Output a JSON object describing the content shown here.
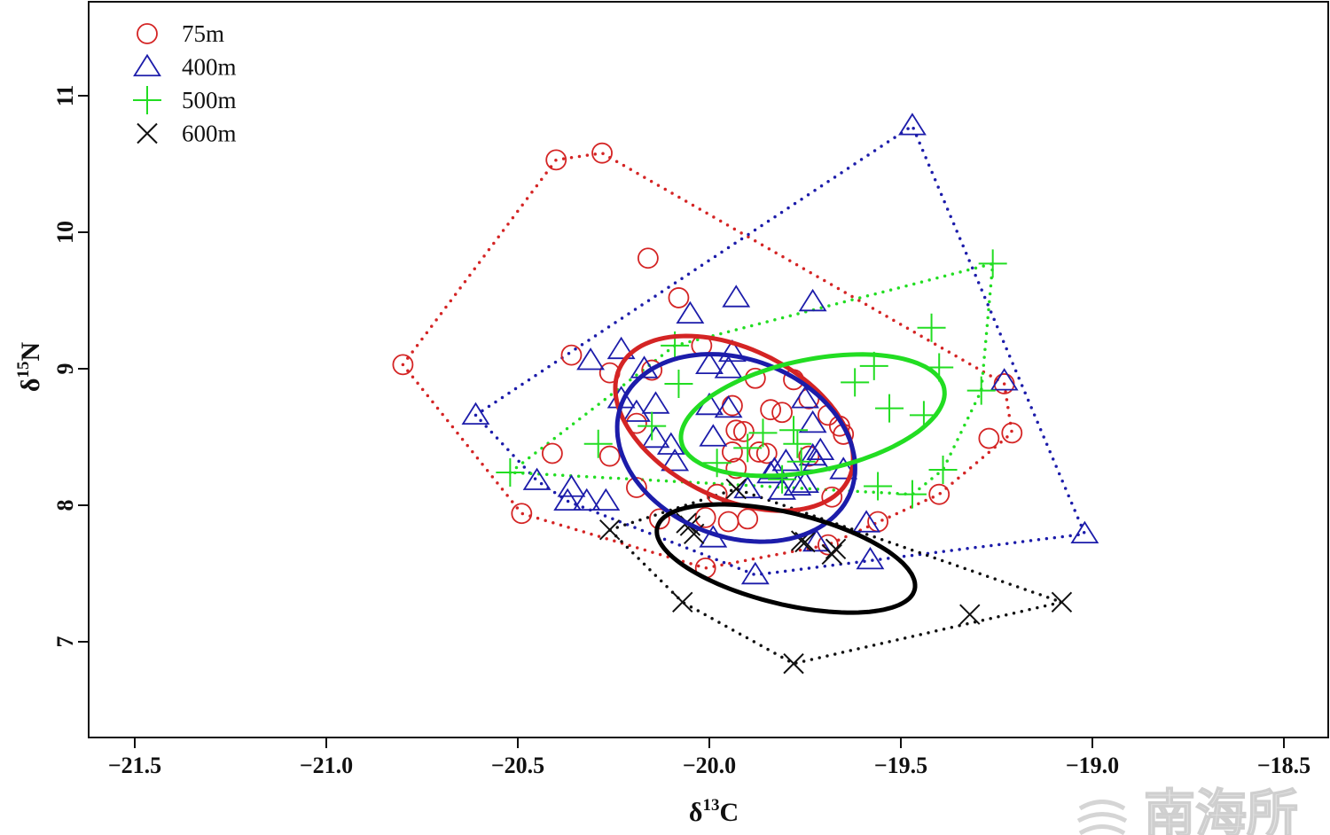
{
  "chart_data": {
    "type": "scatter",
    "title": "",
    "xlabel": {
      "base": "δ",
      "sup": "13",
      "tail": "C"
    },
    "ylabel": {
      "base": "δ",
      "sup": "15",
      "tail": "N"
    },
    "xlim": [
      -21.62,
      -18.38
    ],
    "ylim": [
      6.3,
      11.69
    ],
    "xticks": [
      -21.5,
      -21.0,
      -20.5,
      -20.0,
      -19.5,
      -19.0,
      -18.5
    ],
    "xtick_labels": [
      "−21.5",
      "−21.0",
      "−20.5",
      "−20.0",
      "−19.5",
      "−19.0",
      "−18.5"
    ],
    "yticks": [
      7,
      8,
      9,
      10,
      11
    ],
    "ytick_labels": [
      "7",
      "8",
      "9",
      "10",
      "11"
    ],
    "grid": false,
    "legend_position": "top-left",
    "series": [
      {
        "name": "75m",
        "marker": "circle",
        "color": "#d42424",
        "x": [
          -20.4,
          -20.28,
          -20.8,
          -20.16,
          -20.08,
          -20.36,
          -20.41,
          -20.49,
          -20.26,
          -20.15,
          -20.02,
          -20.01,
          -20.01,
          -19.95,
          -19.9,
          -19.98,
          -20.13,
          -20.19,
          -20.26,
          -20.19,
          -19.94,
          -19.88,
          -19.84,
          -19.81,
          -19.93,
          -19.91,
          -19.87,
          -19.94,
          -19.85,
          -19.78,
          -19.74,
          -19.69,
          -19.65,
          -19.66,
          -19.68,
          -19.74,
          -19.69,
          -19.56,
          -19.4,
          -19.27,
          -19.21,
          -19.23,
          -19.93
        ],
        "y": [
          10.53,
          10.58,
          9.03,
          9.81,
          9.52,
          9.1,
          8.38,
          7.94,
          8.97,
          8.99,
          9.17,
          7.91,
          7.54,
          7.88,
          7.9,
          8.08,
          7.9,
          8.13,
          8.36,
          8.6,
          8.73,
          8.93,
          8.7,
          8.68,
          8.55,
          8.54,
          8.39,
          8.39,
          8.38,
          8.92,
          8.78,
          8.66,
          8.52,
          8.58,
          8.06,
          8.36,
          7.71,
          7.88,
          8.08,
          8.49,
          8.53,
          8.89,
          8.27
        ],
        "ellipse": {
          "center": [
            -19.935,
            8.6
          ],
          "axis1": [
            0.3,
            -0.4
          ],
          "axis2": [
            0.08,
            0.5
          ]
        }
      },
      {
        "name": "400m",
        "marker": "triangle",
        "color": "#1c1caa",
        "x": [
          -19.47,
          -20.61,
          -20.45,
          -20.36,
          -20.37,
          -20.32,
          -20.27,
          -20.31,
          -20.23,
          -20.17,
          -20.14,
          -20.23,
          -20.19,
          -20.1,
          -20.09,
          -20.05,
          -19.93,
          -19.73,
          -20.0,
          -19.94,
          -19.95,
          -20.0,
          -19.99,
          -19.95,
          -19.9,
          -19.84,
          -19.81,
          -19.8,
          -19.77,
          -19.75,
          -19.73,
          -19.72,
          -19.71,
          -19.73,
          -19.75,
          -19.65,
          -19.59,
          -19.58,
          -19.72,
          -19.99,
          -19.88,
          -19.23,
          -19.02,
          -19.83,
          -20.14
        ],
        "y": [
          10.78,
          8.66,
          8.18,
          8.13,
          8.03,
          8.03,
          8.03,
          9.06,
          9.14,
          9.0,
          8.74,
          8.78,
          8.68,
          8.44,
          8.32,
          9.4,
          9.52,
          9.49,
          9.03,
          9.12,
          9.0,
          8.73,
          8.5,
          8.71,
          8.12,
          8.23,
          8.11,
          8.32,
          8.14,
          8.16,
          8.36,
          8.32,
          8.4,
          8.6,
          8.78,
          8.26,
          7.87,
          7.6,
          7.73,
          7.76,
          7.49,
          8.91,
          7.79,
          8.26,
          8.49
        ],
        "ellipse": {
          "center": [
            -19.93,
            8.42
          ],
          "axis1": [
            0.31,
            -0.19
          ],
          "axis2": [
            0.02,
            0.66
          ]
        }
      },
      {
        "name": "500m",
        "marker": "plus",
        "color": "#22dd22",
        "x": [
          -19.26,
          -19.42,
          -19.4,
          -19.57,
          -19.62,
          -19.53,
          -19.44,
          -19.29,
          -19.39,
          -19.47,
          -19.56,
          -20.52,
          -20.29,
          -20.15,
          -20.09,
          -20.08,
          -19.86,
          -19.77,
          -19.76,
          -19.81,
          -19.78,
          -19.98,
          -19.9
        ],
        "y": [
          9.77,
          9.3,
          9.01,
          9.02,
          8.9,
          8.71,
          8.66,
          8.84,
          8.26,
          8.08,
          8.14,
          8.24,
          8.45,
          8.58,
          9.17,
          8.89,
          8.53,
          8.45,
          8.32,
          8.19,
          8.55,
          8.31,
          8.42
        ],
        "ellipse": {
          "center": [
            -19.73,
            8.66
          ],
          "axis1": [
            0.343,
            0.195
          ],
          "axis2": [
            0.028,
            -0.4
          ]
        }
      },
      {
        "name": "600m",
        "marker": "cross",
        "color": "#111111",
        "x": [
          -20.26,
          -20.07,
          -19.78,
          -19.32,
          -19.08,
          -20.05,
          -20.04,
          -20.06,
          -19.93,
          -19.76,
          -19.75,
          -19.68,
          -19.67
        ],
        "y": [
          7.82,
          7.29,
          6.84,
          7.2,
          7.29,
          7.85,
          7.79,
          7.87,
          8.12,
          7.74,
          7.73,
          7.64,
          7.68
        ],
        "ellipse": {
          "center": [
            -19.8,
            7.61
          ],
          "axis1": [
            0.336,
            -0.227
          ],
          "axis2": [
            -0.028,
            -0.325
          ]
        }
      }
    ]
  },
  "watermark": "南海所"
}
